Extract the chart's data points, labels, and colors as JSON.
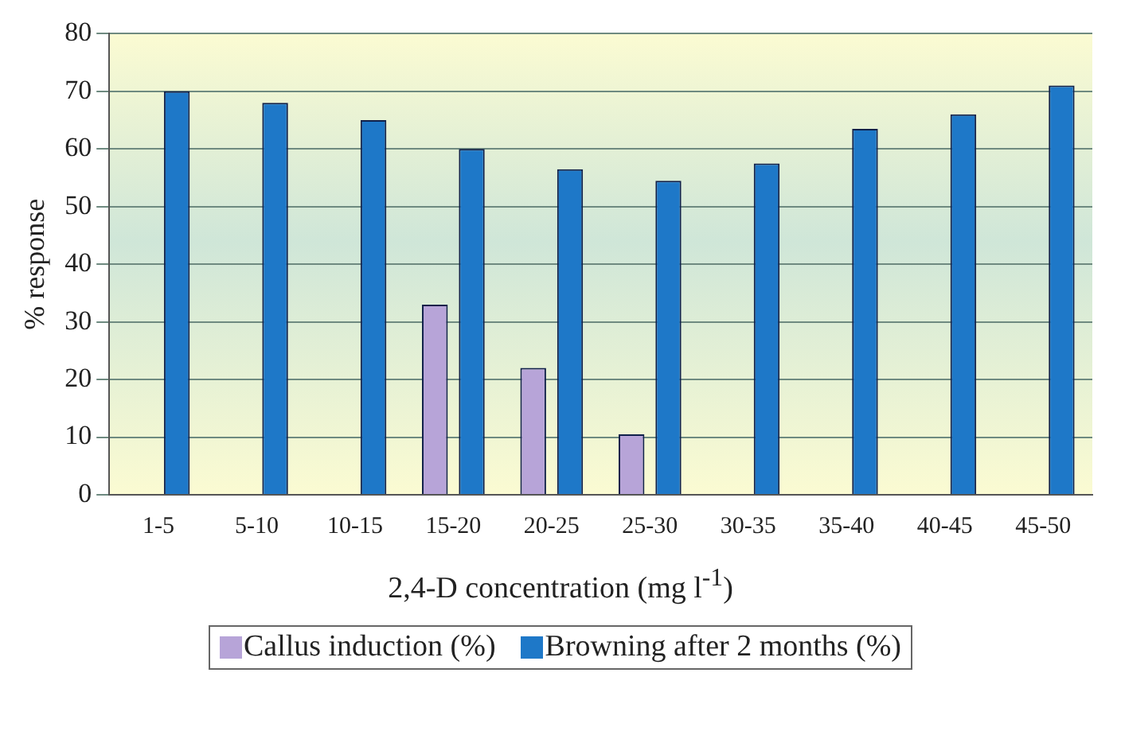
{
  "chart_data": {
    "type": "bar",
    "xlabel": "2,4-D concentration (mg l$^{-1}$)",
    "ylabel": "% response",
    "categories": [
      "1-5",
      "5-10",
      "10-15",
      "15-20",
      "20-25",
      "25-30",
      "30-35",
      "35-40",
      "40-45",
      "45-50"
    ],
    "series": [
      {
        "name": "Callus induction (%)",
        "color": "#b7a4d8",
        "values": [
          0,
          0,
          0,
          33,
          22,
          10.5,
          0,
          0,
          0,
          0
        ]
      },
      {
        "name": "Browning after 2 months (%)",
        "color": "#1e78c8",
        "values": [
          70,
          68,
          65,
          60,
          56.5,
          54.5,
          57.5,
          63.5,
          66,
          71
        ]
      }
    ],
    "ylim": [
      0,
      80
    ],
    "yticks": [
      0,
      10,
      20,
      30,
      40,
      50,
      60,
      70,
      80
    ],
    "grid": "y",
    "legend": "bottom"
  }
}
